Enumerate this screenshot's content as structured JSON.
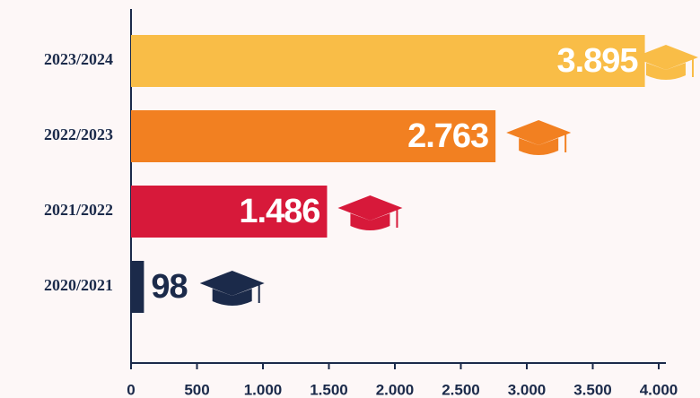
{
  "chart_data": {
    "type": "barh",
    "categories": [
      "2023/2024",
      "2022/2023",
      "2021/2022",
      "2020/2021"
    ],
    "values": [
      3895,
      2763,
      1486,
      98
    ],
    "value_labels": [
      "3.895",
      "2.763",
      "1.486",
      "98"
    ],
    "colors": [
      "#f9bd47",
      "#f28021",
      "#d7193a",
      "#1b2a4a"
    ],
    "xlim": [
      0,
      4000
    ],
    "xticks": [
      0,
      500,
      {
        "value": 1000,
        "label": "1.000"
      },
      {
        "value": 1500,
        "label": "1.500"
      },
      {
        "value": 2000,
        "label": "2.000"
      },
      {
        "value": 2500,
        "label": "2.500"
      },
      {
        "value": 3000,
        "label": "3.000"
      },
      {
        "value": 3500,
        "label": "3.500"
      },
      {
        "value": 4000,
        "label": "4.000"
      }
    ]
  }
}
